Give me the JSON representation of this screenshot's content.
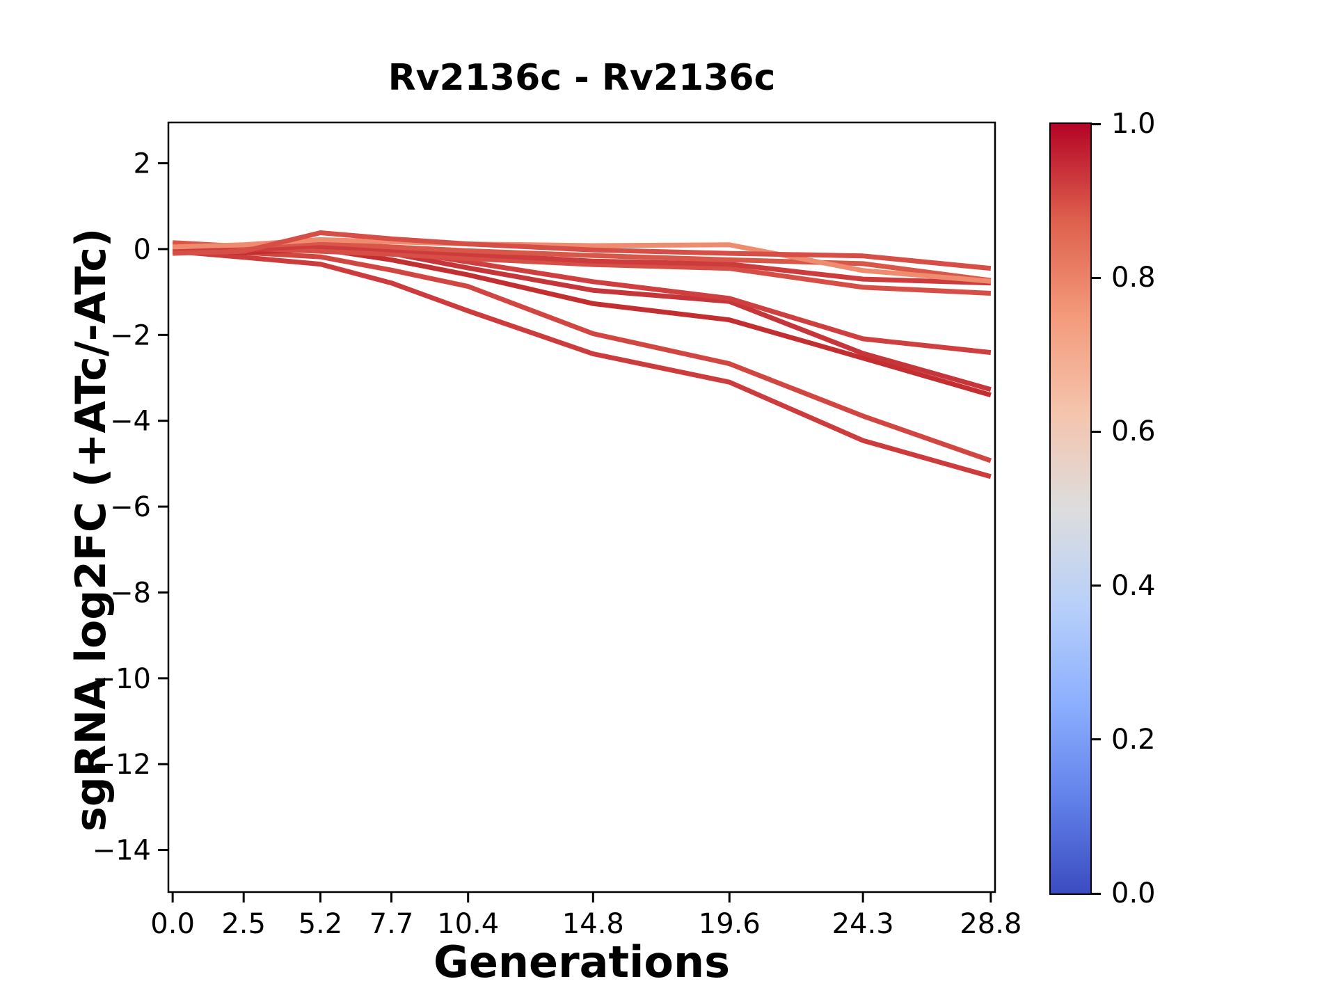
{
  "chart_data": {
    "type": "line",
    "title": "Rv2136c - Rv2136c",
    "xlabel": "Generations",
    "ylabel": "sgRNA log2FC (+ATc/-ATc)",
    "x": [
      0.0,
      2.5,
      5.2,
      7.7,
      10.4,
      14.8,
      19.6,
      24.3,
      28.8
    ],
    "xtick_labels": [
      "0.0",
      "2.5",
      "5.2",
      "7.7",
      "10.4",
      "14.8",
      "19.6",
      "24.3",
      "28.8"
    ],
    "yticks": [
      2,
      0,
      -2,
      -4,
      -6,
      -8,
      -10,
      -12,
      -14
    ],
    "ytick_labels": [
      "2",
      "0",
      "−2",
      "−4",
      "−6",
      "−8",
      "−10",
      "−12",
      "−14"
    ],
    "xlim": [
      -0.15,
      28.95
    ],
    "ylim": [
      -14.98,
      2.95
    ],
    "grid": false,
    "background": "#ffffff",
    "text_color": "#000000",
    "line_width": 7,
    "series": [
      {
        "name": "line-1",
        "colormap_value": 0.93,
        "color": "#cd3b3d",
        "values": [
          -0.05,
          -0.19,
          -0.35,
          -0.79,
          -1.44,
          -2.44,
          -3.1,
          -4.46,
          -5.3
        ]
      },
      {
        "name": "line-2",
        "colormap_value": 0.91,
        "color": "#d24642",
        "values": [
          0.0,
          -0.08,
          -0.18,
          -0.49,
          -0.87,
          -1.97,
          -2.67,
          -3.89,
          -4.93
        ]
      },
      {
        "name": "line-3",
        "colormap_value": 0.96,
        "color": "#c32f31",
        "values": [
          -0.02,
          -0.08,
          0.0,
          -0.25,
          -0.6,
          -1.27,
          -1.65,
          -2.54,
          -3.4
        ]
      },
      {
        "name": "line-4",
        "colormap_value": 0.95,
        "color": "#c63539",
        "values": [
          0.05,
          0.0,
          0.05,
          -0.1,
          -0.44,
          -0.96,
          -1.22,
          -2.43,
          -3.27
        ]
      },
      {
        "name": "line-5",
        "colormap_value": 0.92,
        "color": "#cf3f3f",
        "values": [
          0.0,
          0.05,
          0.12,
          -0.02,
          -0.3,
          -0.76,
          -1.15,
          -2.09,
          -2.41
        ]
      },
      {
        "name": "line-6",
        "colormap_value": 0.9,
        "color": "#d64e45",
        "values": [
          -0.05,
          0.02,
          -0.05,
          -0.12,
          -0.22,
          -0.36,
          -0.45,
          -0.89,
          -1.03
        ]
      },
      {
        "name": "line-7",
        "colormap_value": 0.93,
        "color": "#cd3b3d",
        "values": [
          0.02,
          -0.02,
          0.08,
          -0.02,
          -0.12,
          -0.28,
          -0.35,
          -0.7,
          -0.79
        ]
      },
      {
        "name": "line-8",
        "colormap_value": 0.88,
        "color": "#d95749",
        "values": [
          0.15,
          0.06,
          0.15,
          0.05,
          -0.04,
          -0.15,
          -0.25,
          -0.34,
          -0.73
        ]
      },
      {
        "name": "line-9",
        "colormap_value": 0.78,
        "color": "#ef8c70",
        "values": [
          0.05,
          0.1,
          0.22,
          0.17,
          0.12,
          0.08,
          0.1,
          -0.5,
          -0.75
        ]
      },
      {
        "name": "line-10",
        "colormap_value": 0.9,
        "color": "#d64e45",
        "values": [
          -0.1,
          -0.05,
          0.38,
          0.24,
          0.12,
          -0.02,
          -0.1,
          -0.16,
          -0.45
        ]
      }
    ],
    "colorbar": {
      "cmap": "coolwarm",
      "range": [
        0.0,
        1.0
      ],
      "tick_labels": [
        "1.0",
        "0.8",
        "0.6",
        "0.4",
        "0.2",
        "0.0"
      ],
      "gradient_stops": [
        {
          "pos": 0.0,
          "color": "#3b4cc0"
        },
        {
          "pos": 0.125,
          "color": "#6282ea"
        },
        {
          "pos": 0.25,
          "color": "#8db0fe"
        },
        {
          "pos": 0.375,
          "color": "#b8d0f9"
        },
        {
          "pos": 0.5,
          "color": "#dddddd"
        },
        {
          "pos": 0.625,
          "color": "#f5c4ad"
        },
        {
          "pos": 0.75,
          "color": "#f49a7b"
        },
        {
          "pos": 0.875,
          "color": "#de604d"
        },
        {
          "pos": 1.0,
          "color": "#b40426"
        }
      ]
    }
  }
}
